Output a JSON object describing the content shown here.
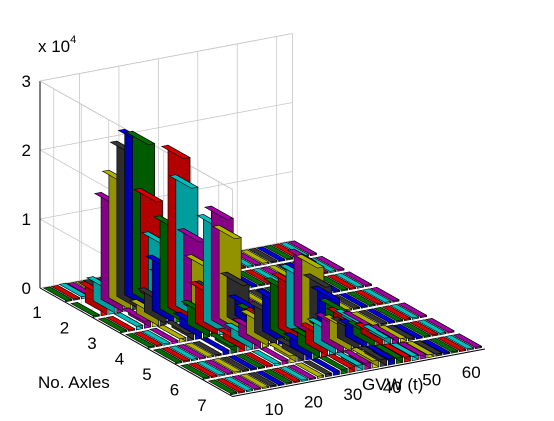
{
  "chart_data": {
    "type": "bar3",
    "title": "",
    "x_axis": {
      "label": "No. Axles",
      "categories": [
        1,
        2,
        3,
        4,
        5,
        6,
        7
      ]
    },
    "y_axis": {
      "label": "GVW (t)",
      "range": [
        0,
        64
      ],
      "bin_width": 2,
      "tick_values": [
        10,
        20,
        30,
        40,
        50,
        60
      ],
      "tick_labels": [
        "10",
        "20",
        "30",
        "40",
        "50",
        "60"
      ]
    },
    "z_axis": {
      "label": "",
      "exponent_label": "x 10",
      "exponent_power": "4",
      "range": [
        0,
        3
      ],
      "tick_values": [
        0,
        1,
        2,
        3
      ],
      "tick_labels": [
        "0",
        "1",
        "2",
        "3"
      ]
    },
    "grid": true,
    "bar_colors": [
      "#008000",
      "#ff0000",
      "#00e0e0",
      "#c000c0",
      "#d0d000",
      "#404040",
      "#0000ff"
    ],
    "gvw_bin_starts": [
      0,
      2,
      4,
      6,
      8,
      10,
      12,
      14,
      16,
      18,
      20,
      22,
      24,
      26,
      28,
      30,
      32,
      34,
      36,
      38,
      40,
      42,
      44,
      46,
      48,
      50,
      52,
      54,
      56,
      58,
      60,
      62
    ],
    "counts_x1e4": [
      [
        0.0,
        0.02,
        0.03,
        0.02,
        0.02,
        0.01,
        0.01,
        0.01,
        0.0,
        0.0,
        0.0,
        0.0,
        0.0,
        0.0,
        0.0,
        0.0,
        0.0,
        0.0,
        0.0,
        0.0,
        0.0,
        0.0,
        0.0,
        0.0,
        0.0,
        0.0,
        0.0,
        0.0,
        0.0,
        0.0,
        0.0,
        0.0
      ],
      [
        0.0,
        0.3,
        0.35,
        1.55,
        1.85,
        2.25,
        2.4,
        2.35,
        1.5,
        0.85,
        0.3,
        0.1,
        0.05,
        0.02,
        0.0,
        0.0,
        0.0,
        0.0,
        0.0,
        0.0,
        0.0,
        0.0,
        0.0,
        0.0,
        0.0,
        0.0,
        0.0,
        0.0,
        0.0,
        0.0,
        0.0,
        0.0
      ],
      [
        0.0,
        0.0,
        0.05,
        0.1,
        0.2,
        0.35,
        0.8,
        1.35,
        2.35,
        1.9,
        1.1,
        0.7,
        0.3,
        0.1,
        0.05,
        0.02,
        0.0,
        0.0,
        0.0,
        0.0,
        0.0,
        0.0,
        0.0,
        0.0,
        0.0,
        0.0,
        0.0,
        0.0,
        0.0,
        0.0,
        0.0,
        0.0
      ],
      [
        0.0,
        0.0,
        0.0,
        0.03,
        0.05,
        0.1,
        0.2,
        0.35,
        0.6,
        1.55,
        1.65,
        1.35,
        0.65,
        0.3,
        0.15,
        0.07,
        0.03,
        0.0,
        0.0,
        0.0,
        0.0,
        0.0,
        0.0,
        0.0,
        0.0,
        0.0,
        0.0,
        0.0,
        0.0,
        0.0,
        0.0,
        0.0
      ],
      [
        0.0,
        0.0,
        0.0,
        0.0,
        0.0,
        0.0,
        0.05,
        0.1,
        0.15,
        0.2,
        0.25,
        0.35,
        0.45,
        0.6,
        0.75,
        0.8,
        0.9,
        1.1,
        1.0,
        0.7,
        0.5,
        0.3,
        0.15,
        0.1,
        0.05,
        0.02,
        0.0,
        0.0,
        0.0,
        0.0,
        0.0,
        0.0
      ],
      [
        0.0,
        0.0,
        0.0,
        0.0,
        0.0,
        0.0,
        0.0,
        0.0,
        0.02,
        0.03,
        0.05,
        0.1,
        0.15,
        0.2,
        0.25,
        0.3,
        0.35,
        0.4,
        0.35,
        0.3,
        0.25,
        0.2,
        0.15,
        0.1,
        0.08,
        0.05,
        0.03,
        0.02,
        0.01,
        0.0,
        0.0,
        0.0
      ],
      [
        0.0,
        0.0,
        0.0,
        0.0,
        0.0,
        0.0,
        0.0,
        0.0,
        0.0,
        0.01,
        0.02,
        0.03,
        0.04,
        0.05,
        0.06,
        0.07,
        0.08,
        0.09,
        0.1,
        0.1,
        0.09,
        0.08,
        0.07,
        0.06,
        0.05,
        0.04,
        0.03,
        0.02,
        0.02,
        0.01,
        0.01,
        0.0
      ]
    ]
  }
}
